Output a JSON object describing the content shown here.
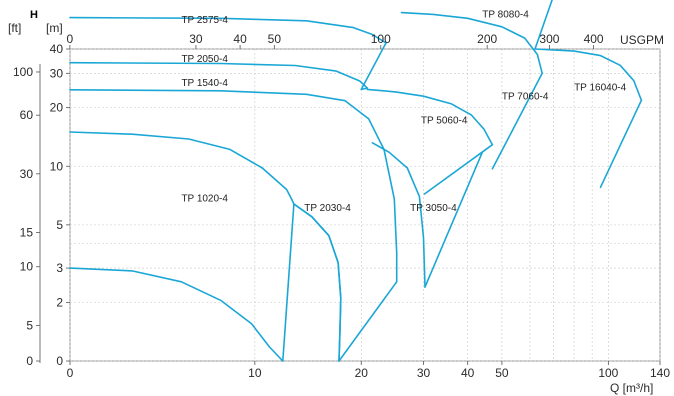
{
  "chart_data": {
    "type": "line",
    "title": "",
    "axis_letter": "H",
    "left_units": [
      "[ft]",
      "[m]"
    ],
    "top_unit": "USGPM",
    "x_label": "Q [m³/h]",
    "x_scale": "log",
    "y_scale": "log",
    "x_ticks": [
      "0",
      "10",
      "20",
      "30",
      "40",
      "50",
      "100",
      "140"
    ],
    "x_tick_values": [
      3,
      10,
      20,
      30,
      40,
      50,
      100,
      140
    ],
    "usgpm_ticks": [
      "0",
      "30",
      "40",
      "50",
      "100",
      "200",
      "300",
      "400"
    ],
    "usgpm_tick_values": [
      13.2,
      30,
      40,
      50,
      100,
      200,
      300,
      400
    ],
    "m_ticks": [
      "0",
      "2",
      "3",
      "5",
      "10",
      "20",
      "30",
      "40"
    ],
    "m_tick_values": [
      1,
      2,
      3,
      5,
      10,
      20,
      30,
      40
    ],
    "ft_ticks": [
      "0",
      "5",
      "10",
      "15",
      "30",
      "60",
      "100"
    ],
    "ft_tick_values": [
      3.28,
      5,
      10,
      15,
      30,
      60,
      100
    ],
    "x_grid": [
      3,
      10,
      20,
      30,
      40,
      50,
      60,
      70,
      80,
      90,
      100,
      140
    ],
    "y_grid": [
      1,
      2,
      3,
      4,
      5,
      10,
      20,
      30,
      40
    ],
    "colors": {
      "curve": "#1ba7d6",
      "axis_letter": "#1ba7d6",
      "grid": "#c9c9c9",
      "text": "#2b2b2b"
    },
    "grid": true,
    "series": [
      {
        "name": "TP 1020-4",
        "label_at": [
          6.2,
          6.6
        ],
        "points": [
          [
            3,
            3
          ],
          [
            4.5,
            2.9
          ],
          [
            6.2,
            2.55
          ],
          [
            8,
            2.05
          ],
          [
            9.8,
            1.55
          ],
          [
            11,
            1.18
          ],
          [
            12,
            1
          ]
        ],
        "points2": [
          [
            3,
            15
          ],
          [
            4.5,
            14.6
          ],
          [
            6.5,
            13.8
          ],
          [
            8.5,
            12.2
          ],
          [
            10.5,
            9.8
          ],
          [
            12.3,
            7.6
          ],
          [
            12.7,
            6.8
          ],
          [
            12.9,
            6.4
          ]
        ],
        "connector": [
          [
            12,
            1
          ],
          [
            12.9,
            6.4
          ]
        ]
      },
      {
        "name": "TP 2030-4",
        "label_at": [
          13.8,
          5.9
        ],
        "points": [
          [
            12.9,
            6.4
          ],
          [
            14.5,
            5.5
          ],
          [
            16.2,
            4.4
          ],
          [
            17.2,
            3.2
          ],
          [
            17.5,
            2.1
          ],
          [
            17.4,
            1.4
          ],
          [
            17.3,
            1
          ]
        ],
        "points2": [
          [
            12.9,
            6.4
          ],
          [
            14.5,
            5.5
          ],
          [
            16.2,
            4.4
          ],
          [
            17.2,
            3.2
          ],
          [
            17.5,
            2.1
          ],
          [
            17.4,
            1.4
          ],
          [
            17.3,
            1
          ]
        ],
        "connector": [
          [
            17.3,
            1
          ],
          [
            25.2,
            2.55
          ]
        ]
      },
      {
        "name": "TP 1540-4",
        "label_at": [
          6.2,
          25.8
        ],
        "points": [
          [
            3,
            24.7
          ],
          [
            8,
            24.4
          ],
          [
            14,
            23.4
          ],
          [
            18,
            21.7
          ],
          [
            21,
            17.5
          ],
          [
            23.2,
            12.2
          ],
          [
            24.8,
            6.8
          ],
          [
            25.2,
            3.6
          ],
          [
            25.2,
            2.55
          ]
        ],
        "connector": [
          [
            18,
            21.7
          ],
          [
            18,
            21.7
          ]
        ]
      },
      {
        "name": "TP 2050-4",
        "label_at": [
          6.2,
          34.3
        ],
        "points": [
          [
            3,
            34
          ],
          [
            8,
            33.7
          ],
          [
            13,
            32.9
          ],
          [
            17,
            30.8
          ],
          [
            19.8,
            27.4
          ],
          [
            20.8,
            25.2
          ]
        ],
        "connector": [
          [
            20.8,
            25.2
          ],
          [
            20,
            24.8
          ]
        ]
      },
      {
        "name": "TP 2575-4",
        "label_at": [
          6.2,
          54.5
        ],
        "points": [
          [
            3,
            58
          ],
          [
            8,
            57.5
          ],
          [
            14,
            55.8
          ],
          [
            19,
            51.5
          ],
          [
            21.5,
            47.5
          ],
          [
            23.5,
            43
          ]
        ],
        "connector": [
          [
            23.5,
            43
          ],
          [
            20,
            24.8
          ]
        ]
      },
      {
        "name": "TP 3050-4",
        "label_at": [
          27.5,
          5.9
        ],
        "points": [
          [
            21.5,
            13.2
          ],
          [
            24,
            11.8
          ],
          [
            27,
            9.8
          ],
          [
            29.2,
            7
          ],
          [
            30,
            4.3
          ],
          [
            30.3,
            2.4
          ]
        ],
        "connector": [
          [
            30.3,
            2.4
          ],
          [
            44,
            11.8
          ]
        ]
      },
      {
        "name": "TP 5060-4",
        "label_at": [
          29.5,
          16.6
        ],
        "points": [
          [
            20.8,
            24.8
          ],
          [
            25,
            24.1
          ],
          [
            30,
            22.9
          ],
          [
            36,
            20.9
          ],
          [
            41,
            18.3
          ],
          [
            44.5,
            15.5
          ],
          [
            47,
            12.9
          ]
        ],
        "connector": [
          [
            30.2,
            7.2
          ],
          [
            47,
            12.9
          ]
        ]
      },
      {
        "name": "TP 7060-4",
        "label_at": [
          50,
          22
        ],
        "points": [
          [
            26,
            61.5
          ],
          [
            32,
            60.2
          ],
          [
            40,
            57.5
          ],
          [
            50,
            52
          ],
          [
            58,
            45.5
          ],
          [
            63,
            37.5
          ],
          [
            65,
            30
          ]
        ],
        "connector": [
          [
            47,
            9.7
          ],
          [
            65,
            30
          ]
        ]
      },
      {
        "name": "TP 8080-4",
        "label_at": [
          44,
          58
        ],
        "points": [
          [
            3,
            111
          ],
          [
            20,
            110
          ],
          [
            35,
            106
          ],
          [
            50,
            99
          ],
          [
            62,
            90
          ],
          [
            71,
            81
          ]
        ],
        "connector": [
          [
            71,
            81
          ],
          [
            62,
            40
          ]
        ]
      },
      {
        "name": "TP 16040-4",
        "label_at": [
          80,
          24.5
        ],
        "points": [
          [
            62,
            40
          ],
          [
            80,
            39
          ],
          [
            95,
            37
          ],
          [
            108,
            33
          ],
          [
            118,
            27.5
          ],
          [
            124,
            21.8
          ]
        ],
        "connector": [
          [
            95,
            7.8
          ],
          [
            124,
            21.8
          ]
        ]
      }
    ]
  }
}
